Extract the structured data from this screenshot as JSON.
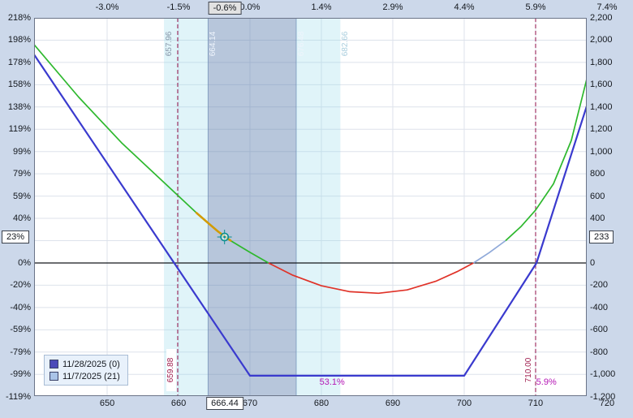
{
  "chart_data": {
    "type": "line",
    "price_axis": {
      "min": 639.77,
      "max": 717.16,
      "bottom_ticks": [
        650,
        660,
        670,
        680,
        690,
        700,
        710,
        720
      ],
      "top_ticks": [
        {
          "label": "-3.0%",
          "price": 650
        },
        {
          "label": "-1.5%",
          "price": 660
        },
        {
          "label": "0.0%",
          "price": 670
        },
        {
          "label": "1.4%",
          "price": 680
        },
        {
          "label": "2.9%",
          "price": 690
        },
        {
          "label": "4.4%",
          "price": 700
        },
        {
          "label": "5.9%",
          "price": 710
        },
        {
          "label": "7.4%",
          "price": 720
        }
      ]
    },
    "value_axis": {
      "min": -1200,
      "max": 2200,
      "step": 200,
      "left_labels": [
        {
          "text": "218%",
          "value": 2200
        },
        {
          "text": "198%",
          "value": 2000
        },
        {
          "text": "178%",
          "value": 1800
        },
        {
          "text": "158%",
          "value": 1600
        },
        {
          "text": "138%",
          "value": 1400
        },
        {
          "text": "119%",
          "value": 1200
        },
        {
          "text": "99%",
          "value": 1000
        },
        {
          "text": "79%",
          "value": 800
        },
        {
          "text": "59%",
          "value": 600
        },
        {
          "text": "40%",
          "value": 400
        },
        {
          "text": "0%",
          "value": 0
        },
        {
          "text": "-20%",
          "value": -200
        },
        {
          "text": "-40%",
          "value": -400
        },
        {
          "text": "-59%",
          "value": -600
        },
        {
          "text": "-79%",
          "value": -800
        },
        {
          "text": "-99%",
          "value": -1000
        },
        {
          "text": "-119%",
          "value": -1200
        }
      ],
      "right_labels": [
        {
          "text": "2,200",
          "value": 2200
        },
        {
          "text": "2,000",
          "value": 2000
        },
        {
          "text": "1,800",
          "value": 1800
        },
        {
          "text": "1,600",
          "value": 1600
        },
        {
          "text": "1,400",
          "value": 1400
        },
        {
          "text": "1,200",
          "value": 1200
        },
        {
          "text": "1,000",
          "value": 1000
        },
        {
          "text": "800",
          "value": 800
        },
        {
          "text": "600",
          "value": 600
        },
        {
          "text": "400",
          "value": 400
        },
        {
          "text": "0",
          "value": 0
        },
        {
          "text": "-200",
          "value": -200
        },
        {
          "text": "-400",
          "value": -400
        },
        {
          "text": "-600",
          "value": -600
        },
        {
          "text": "-800",
          "value": -800
        },
        {
          "text": "-1,000",
          "value": -1000
        },
        {
          "text": "-1,200",
          "value": -1200
        }
      ]
    },
    "current_readout": {
      "pct_change": "-0.6%",
      "price": "666.44",
      "pnl_pct": "23%",
      "pnl_value": "233",
      "marker": {
        "price": 666.44,
        "value": 233,
        "color": "#0a8f8f"
      }
    },
    "breakeven_lines": [
      {
        "label": "659.88",
        "price": 659.88,
        "color": "#a23565"
      },
      {
        "label": "710.00",
        "price": 710.0,
        "color": "#a23565"
      }
    ],
    "bands": [
      {
        "from": 657.96,
        "to": 664.14,
        "tone": "light",
        "color": "#8fd8e8",
        "opacity": 0.28
      },
      {
        "from": 664.14,
        "to": 676.48,
        "tone": "dark",
        "color": "#6080b0",
        "opacity": 0.45
      },
      {
        "from": 676.48,
        "to": 682.66,
        "tone": "light",
        "color": "#8fd8e8",
        "opacity": 0.28
      }
    ],
    "band_edge_labels": [
      {
        "text": "657.96",
        "price": 657.96,
        "tone": "gray"
      },
      {
        "text": "664.14",
        "price": 664.14,
        "tone": "white"
      },
      {
        "text": "676.48",
        "price": 676.48,
        "tone": "white"
      },
      {
        "text": "682.66",
        "price": 682.66,
        "tone": "pale"
      }
    ],
    "probability_labels": [
      {
        "text": "53.1%",
        "price": 681.5
      },
      {
        "text": "5.9%",
        "price": 711.5
      }
    ],
    "series": [
      {
        "name": "11/28/2025 (0)",
        "role": "expiration",
        "color": "#3a3ace",
        "points": [
          [
            639.77,
            1870
          ],
          [
            670,
            -1012
          ],
          [
            700,
            -1012
          ],
          [
            710.12,
            0
          ],
          [
            717.16,
            1408
          ]
        ]
      },
      {
        "name": "11/7/2025 (21)",
        "role": "today",
        "segments": [
          {
            "color": "#2eb82e",
            "points": [
              [
                639.77,
                1960
              ],
              [
                646,
                1490
              ],
              [
                652,
                1080
              ],
              [
                658,
                720
              ],
              [
                663,
                420
              ],
              [
                666.44,
                233
              ],
              [
                670,
                95
              ],
              [
                672.6,
                0
              ]
            ]
          },
          {
            "color": "#e03228",
            "points": [
              [
                672.6,
                0
              ],
              [
                676,
                -110
              ],
              [
                680,
                -205
              ],
              [
                684,
                -258
              ],
              [
                688,
                -272
              ],
              [
                692,
                -242
              ],
              [
                696,
                -165
              ],
              [
                699,
                -78
              ],
              [
                701.3,
                0
              ]
            ]
          },
          {
            "color": "#8fa9d9",
            "points": [
              [
                701.3,
                0
              ],
              [
                703.5,
                92
              ],
              [
                705.8,
                200
              ]
            ]
          },
          {
            "color": "#2eb82e",
            "points": [
              [
                705.8,
                200
              ],
              [
                708,
                330
              ],
              [
                710,
                475
              ],
              [
                712.5,
                710
              ],
              [
                715,
                1100
              ],
              [
                717.16,
                1650
              ]
            ]
          }
        ],
        "highlight_segment": {
          "color": "#d29b00",
          "points": [
            [
              662.5,
              450
            ],
            [
              664,
              366
            ],
            [
              665.5,
              284
            ],
            [
              667.3,
              200
            ]
          ]
        }
      }
    ],
    "legend": [
      {
        "label": "11/28/2025 (0)",
        "swatch": "#4a4ab8"
      },
      {
        "label": "11/7/2025 (21)",
        "swatch": "#a9c4e8"
      }
    ]
  }
}
